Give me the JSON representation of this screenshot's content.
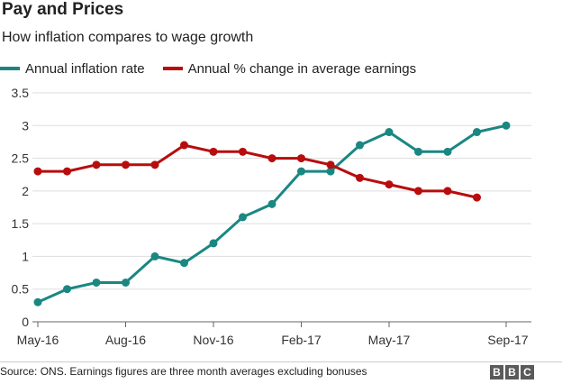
{
  "chart_data": {
    "type": "line",
    "title": "Pay and Prices",
    "subtitle": "How inflation compares to wage growth",
    "x": [
      "May-16",
      "Jun-16",
      "Jul-16",
      "Aug-16",
      "Sep-16",
      "Oct-16",
      "Nov-16",
      "Dec-16",
      "Jan-17",
      "Feb-17",
      "Mar-17",
      "Apr-17",
      "May-17",
      "Jun-17",
      "Jul-17",
      "Aug-17",
      "Sep-17"
    ],
    "x_tick_labels": [
      "May-16",
      "Aug-16",
      "Nov-16",
      "Feb-17",
      "May-17",
      "Sep-17"
    ],
    "x_tick_indices": [
      0,
      3,
      6,
      9,
      12,
      16
    ],
    "y_ticks": [
      0,
      0.5,
      1,
      1.5,
      2,
      2.5,
      3,
      3.5
    ],
    "y_tick_labels": [
      "0",
      "0.5",
      "1",
      "1.5",
      "2",
      "2.5",
      "3",
      "3.5"
    ],
    "ylim": [
      0,
      3.5
    ],
    "grid": "horizontal",
    "legend_position": "top-left",
    "series": [
      {
        "name": "Annual inflation rate",
        "color": "#1a8782",
        "values": [
          0.3,
          0.5,
          0.6,
          0.6,
          1.0,
          0.9,
          1.2,
          1.6,
          1.8,
          2.3,
          2.3,
          2.7,
          2.9,
          2.6,
          2.6,
          2.9,
          3.0
        ]
      },
      {
        "name": "Annual % change in average earnings",
        "color": "#b80d0d",
        "values": [
          2.3,
          2.3,
          2.4,
          2.4,
          2.4,
          2.7,
          2.6,
          2.6,
          2.5,
          2.5,
          2.4,
          2.2,
          2.1,
          2.0,
          2.0,
          1.9,
          null
        ]
      }
    ]
  },
  "footer": {
    "source": "Source: ONS. Earnings figures are three month averages excluding bonuses",
    "logo_letters": [
      "B",
      "B",
      "C"
    ]
  }
}
